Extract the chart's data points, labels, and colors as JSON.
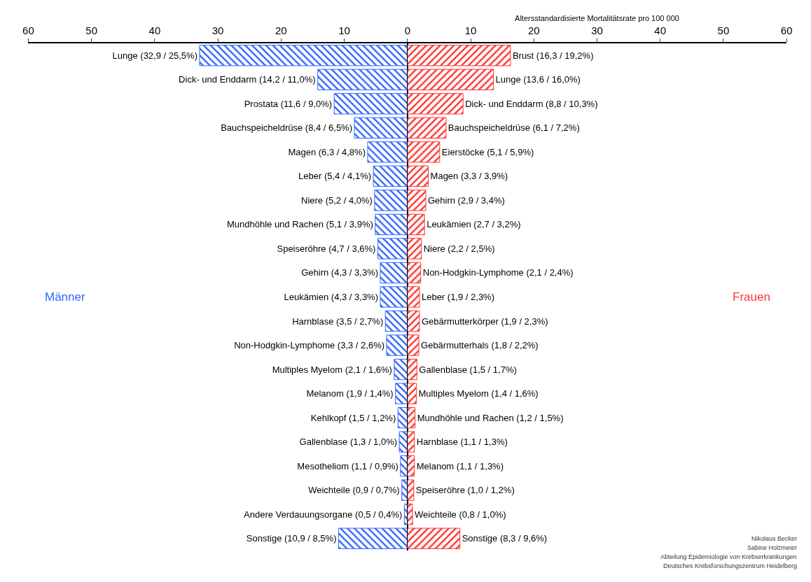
{
  "chart_data": [
    {
      "type": "bar",
      "orientation": "horizontal",
      "tick_labels": "x",
      "categories": [
        "Lunge (32,9 / 25,5%)",
        "Dick- und Enddarm (14,2 / 11,0%)",
        "Prostata (11,6 / 9,0%)",
        "Bauchspeicheldrüse (8,4 / 6,5%)",
        "Magen (6,3 / 4,8%)",
        "Leber (5,4 / 4,1%)",
        "Niere (5,2 / 4,0%)",
        "Mundhöhle und Rachen (5,1 / 3,9%)",
        "Speiseröhre (4,7 / 3,6%)",
        "Gehirn (4,3 / 3,3%)",
        "Leukämien (4,3 / 3,3%)",
        "Harnblase (3,5 / 2,7%)",
        "Non-Hodgkin-Lymphome (3,3 / 2,6%)",
        "Multiples Myelom (2,1 / 1,6%)",
        "Melanom (1,9 / 1,4%)",
        "Kehlkopf (1,5 / 1,2%)",
        "Gallenblase (1,3 / 1,0%)",
        "Mesotheliom (1,1 / 0,9%)",
        "Weichteile (0,9 / 0,7%)",
        "Andere Verdauungsorgane (0,5 / 0,4%)",
        "Sonstige (10,9 / 8,5%)"
      ],
      "series": [
        {
          "name": "Männer",
          "color": "#3366ff",
          "values": [
            32.9,
            14.2,
            11.6,
            8.4,
            6.3,
            5.4,
            5.2,
            5.1,
            4.7,
            4.3,
            4.3,
            3.5,
            3.3,
            2.1,
            1.9,
            1.5,
            1.3,
            1.1,
            0.9,
            0.5,
            10.9
          ]
        }
      ],
      "xlim": [
        60,
        0
      ],
      "xticks": [
        60,
        50,
        40,
        30,
        20,
        10,
        {
          "value": 0,
          "label": null
        }
      ]
    },
    {
      "type": "bar",
      "orientation": "horizontal",
      "tick_labels": "x",
      "xlabel": "Altersstandardisierte Mortalitätsrate pro 100 000",
      "categories": [
        "Brust (16,3 / 19,2%)",
        "Lunge (13,6 / 16,0%)",
        "Dick- und Enddarm (8,8 / 10,3%)",
        "Bauchspeicheldrüse (6,1 / 7,2%)",
        "Eierstöcke (5,1 / 5,9%)",
        "Magen (3,3 / 3,9%)",
        "Gehirn (2,9 / 3,4%)",
        "Leukämien (2,7 / 3,2%)",
        "Niere (2,2 / 2,5%)",
        "Non-Hodgkin-Lymphome (2,1 / 2,4%)",
        "Leber (1,9 / 2,3%)",
        "Gebärmutterkörper (1,9 / 2,3%)",
        "Gebärmutterhals (1,8 / 2,2%)",
        "Gallenblase (1,5 / 1,7%)",
        "Multiples Myelom (1,4 / 1,6%)",
        "Mundhöhle und Rachen (1,2 / 1,5%)",
        "Harnblase (1,1 / 1,3%)",
        "Melanom (1,1 / 1,3%)",
        "Speiseröhre (1,0 / 1,2%)",
        "Weichteile (0,8 / 1,0%)",
        "Sonstige (8,3 / 9,6%)"
      ],
      "series": [
        {
          "name": "Frauen",
          "color": "#ff3333",
          "values": [
            16.3,
            13.6,
            8.8,
            6.1,
            5.1,
            3.3,
            2.9,
            2.7,
            2.2,
            2.1,
            1.9,
            1.9,
            1.8,
            1.5,
            1.4,
            1.2,
            1.1,
            1.1,
            1.0,
            0.8,
            8.3
          ]
        }
      ],
      "xlim": [
        0,
        60
      ],
      "xticks": [
        0,
        10,
        20,
        30,
        40,
        50,
        60
      ],
      "annotations": [
        "Nikolaus Becker",
        "Sabine Holzmeier",
        "Abteilung Epidemiologie von Krebserkrankungen",
        "Deutsches Krebsforschungszentrum Heidelberg"
      ]
    }
  ]
}
